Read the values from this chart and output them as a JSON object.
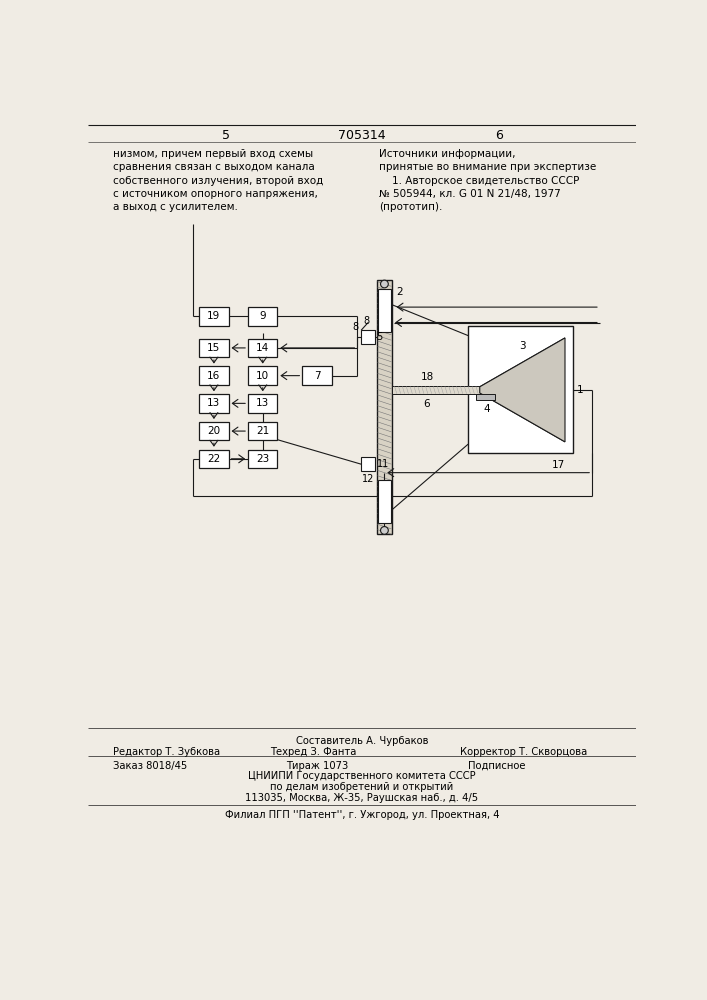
{
  "page_color": "#f0ece4",
  "title": "705314",
  "page_left": "5",
  "page_right": "6",
  "left_text": "низмом, причем первый вход схемы\nсравнения связан с выходом канала\nсобственного излучения, второй вход\nс источником опорного напряжения,\nа выход с усилителем.",
  "right_text": "Источники информации,\nпринятые во внимание при экспертизе\n    1. Авторское свидетельство СССР\n№ 505944, кл. G 01 N 21/48, 1977\n(прототип).",
  "bottom_composer": "Составитель А. Чурбаков",
  "bottom_editor": "Редактор Т. Зубкова",
  "bottom_tech": "Техред З. Фанта",
  "bottom_corrector": "Корректор Т. Скворцова",
  "bottom_order": "Заказ 8018/45",
  "bottom_tirazh": "Тираж 1073",
  "bottom_podpisnoe": "Подписное",
  "bottom_cniip": "ЦНИИПИ Государственного комитета СССР",
  "bottom_po_delam": "по делам изобретений и открытий",
  "bottom_address": "113035, Москва, Ж-35, Раушская наб., д. 4/5",
  "bottom_filial": "Филиал ПГП ''Патент'', г. Ужгород, ул. Проектная, 4"
}
